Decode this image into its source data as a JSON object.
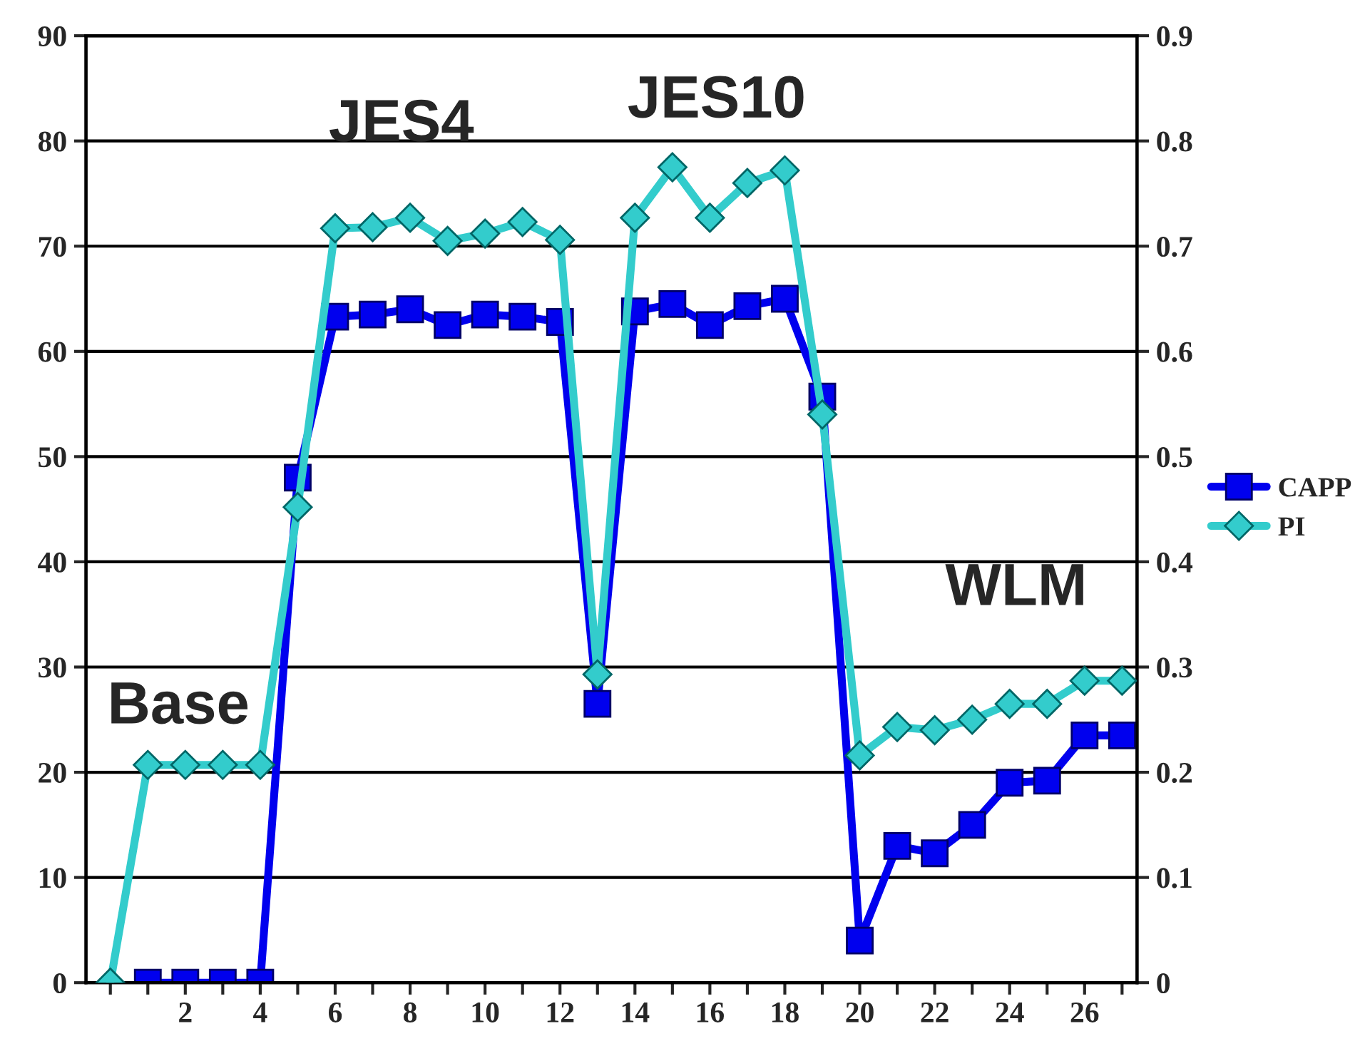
{
  "chart_data": {
    "type": "line",
    "x": [
      1,
      2,
      3,
      4,
      5,
      6,
      7,
      8,
      9,
      10,
      11,
      12,
      13,
      14,
      15,
      16,
      17,
      18,
      19,
      20,
      21,
      22,
      23,
      24,
      25,
      26,
      27
    ],
    "series": [
      {
        "name": "CAPP",
        "color": "#0000ee",
        "marker": "square",
        "values": [
          0,
          0,
          0,
          0,
          48,
          63.3,
          63.5,
          64,
          62.5,
          63.5,
          63.3,
          62.8,
          26.5,
          63.8,
          64.5,
          62.5,
          64.3,
          65,
          55.7,
          4,
          13,
          12.3,
          15,
          19,
          19.2,
          23.5,
          23.5
        ]
      },
      {
        "name": "PI",
        "color": "#33cccc",
        "marker": "diamond",
        "axis": "y2",
        "x": [
          0,
          1,
          2,
          3,
          4,
          5,
          6,
          7,
          8,
          9,
          10,
          11,
          12,
          13,
          14,
          15,
          16,
          17,
          18,
          19,
          20,
          21,
          22,
          23,
          24,
          25,
          26,
          27
        ],
        "values": [
          0,
          0.207,
          0.207,
          0.207,
          0.207,
          0.452,
          0.717,
          0.718,
          0.727,
          0.705,
          0.712,
          0.723,
          0.706,
          0.293,
          0.727,
          0.775,
          0.727,
          0.76,
          0.772,
          0.54,
          0.216,
          0.243,
          0.24,
          0.25,
          0.265,
          0.265,
          0.287,
          0.287
        ]
      }
    ],
    "xlim": [
      -0.65,
      27.4
    ],
    "xticks": [
      {
        "value": 0,
        "label": null
      },
      {
        "value": 1,
        "label": null
      },
      2,
      {
        "value": 3,
        "label": null
      },
      4,
      {
        "value": 5,
        "label": null
      },
      6,
      {
        "value": 7,
        "label": null
      },
      8,
      {
        "value": 9,
        "label": null
      },
      10,
      {
        "value": 11,
        "label": null
      },
      12,
      {
        "value": 13,
        "label": null
      },
      14,
      {
        "value": 15,
        "label": null
      },
      16,
      {
        "value": 17,
        "label": null
      },
      18,
      {
        "value": 19,
        "label": null
      },
      20,
      {
        "value": 21,
        "label": null
      },
      22,
      {
        "value": 23,
        "label": null
      },
      24,
      {
        "value": 25,
        "label": null
      },
      26,
      {
        "value": 27,
        "label": null
      }
    ],
    "ylim": [
      0,
      90
    ],
    "yticks": [
      0,
      10,
      20,
      30,
      40,
      50,
      60,
      70,
      80,
      90
    ],
    "y2lim": [
      0,
      0.9
    ],
    "y2ticks": [
      0,
      0.1,
      0.2,
      0.3,
      0.4,
      0.5,
      0.6,
      0.7,
      0.8,
      0.9
    ],
    "grid": "y",
    "legend": "right",
    "line_style": "solid",
    "annotations": [
      "Base",
      "JES4",
      "JES10",
      "WLM"
    ]
  }
}
